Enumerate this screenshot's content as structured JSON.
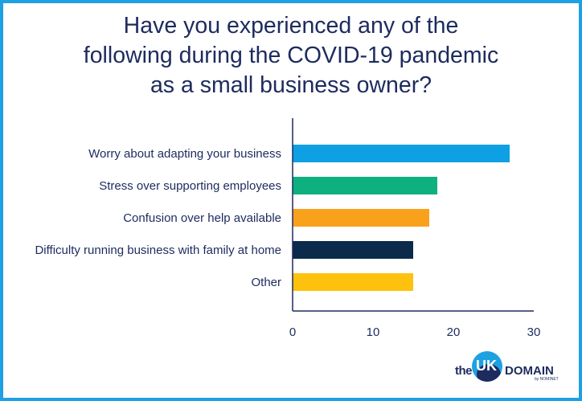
{
  "title_lines": [
    "Have you experienced any of the",
    "following during the COVID-19 pandemic",
    "as a small business owner?"
  ],
  "chart_data": {
    "type": "bar",
    "orientation": "horizontal",
    "title": "Have you experienced any of the following during the COVID-19 pandemic as a small business owner?",
    "categories": [
      "Worry about adapting your business",
      "Stress over supporting employees",
      "Confusion over help available",
      "Difficulty running business with family at home",
      "Other"
    ],
    "values": [
      27,
      18,
      17,
      15,
      15
    ],
    "colors": [
      "#0ea0e2",
      "#0fb07f",
      "#f9a11b",
      "#0c2a4a",
      "#fec10d"
    ],
    "xlabel": "",
    "ylabel": "",
    "xlim": [
      0,
      30
    ],
    "xticks": [
      0,
      10,
      20,
      30
    ],
    "grid": false,
    "legend": "none"
  },
  "logo": {
    "the": "the",
    "uk": "UK",
    "domain": "DOMAIN",
    "by": "by NOMINET"
  },
  "colors": {
    "frame": "#1ea1e3",
    "text": "#1d2b5e"
  }
}
